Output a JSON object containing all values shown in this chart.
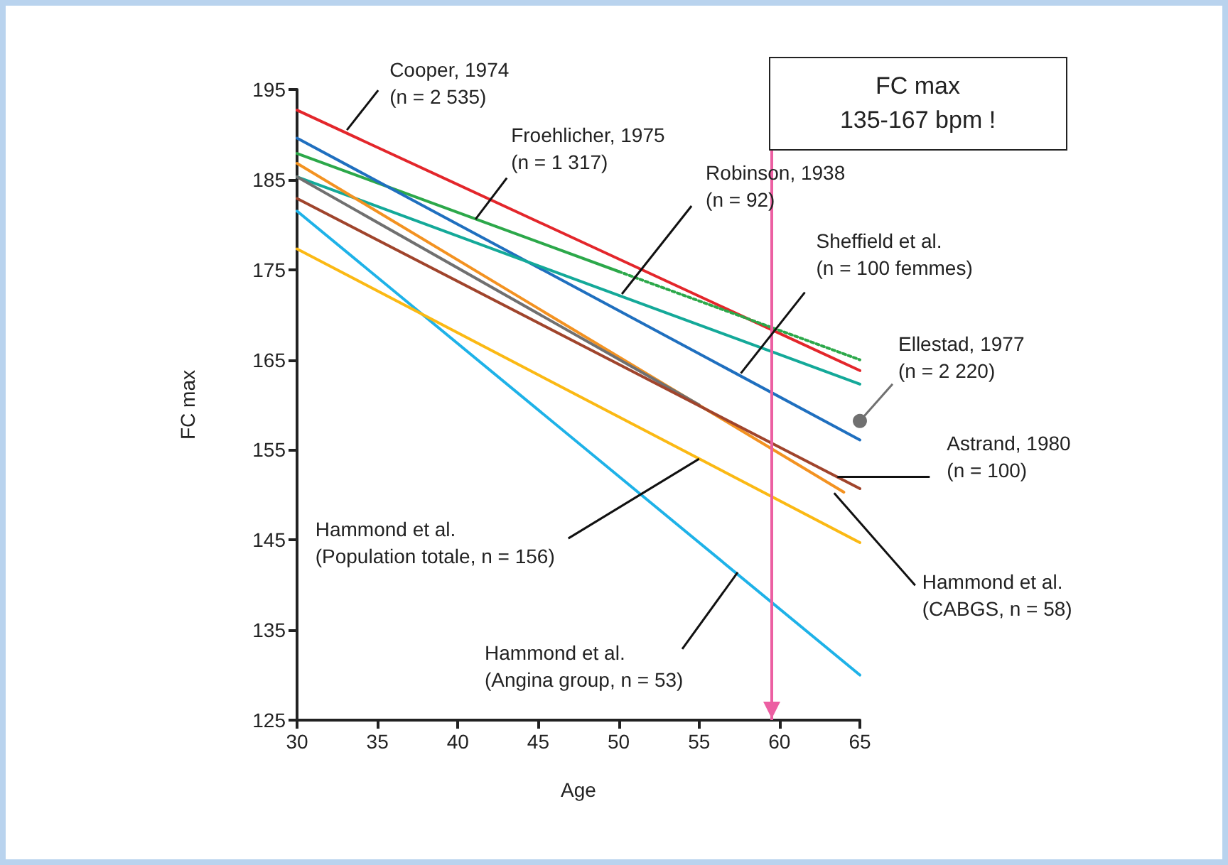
{
  "chart_data": {
    "type": "line",
    "xlabel": "Age",
    "ylabel": "FC max",
    "xlim": [
      30,
      65
    ],
    "xticks": [
      30,
      35,
      40,
      45,
      50,
      55,
      60,
      65
    ],
    "ylim": [
      125,
      195
    ],
    "yticks": [
      125,
      135,
      145,
      155,
      165,
      175,
      185,
      195
    ],
    "grid": false,
    "marker": "none",
    "series": [
      {
        "color": "#e3262b",
        "x": [
          30,
          65
        ],
        "values": [
          192.7,
          163.8
        ]
      },
      {
        "color": "#2ca84a",
        "x": [
          30,
          50
        ],
        "values": [
          187.9,
          174.8
        ]
      },
      {
        "color": "#2ca84a",
        "x": [
          50,
          65
        ],
        "values": [
          174.8,
          165
        ],
        "line_style": "dotted"
      },
      {
        "color": "#1f6fbf",
        "x": [
          30,
          65
        ],
        "values": [
          189.6,
          156.1
        ]
      },
      {
        "color": "#14a999",
        "x": [
          30,
          65
        ],
        "values": [
          185.3,
          162.3
        ]
      },
      {
        "color": "#f39221",
        "x": [
          30,
          64
        ],
        "values": [
          186.8,
          150.3
        ]
      },
      {
        "color": "#707070",
        "x": [
          30,
          55
        ],
        "values": [
          185.3,
          160
        ]
      },
      {
        "color": "#a0442c",
        "x": [
          30,
          65
        ],
        "values": [
          182.9,
          150.7
        ]
      },
      {
        "color": "#1eb2e8",
        "x": [
          30,
          65
        ],
        "values": [
          181.5,
          130
        ]
      },
      {
        "color": "#fbb914",
        "x": [
          30,
          65
        ],
        "values": [
          177.3,
          144.7
        ]
      }
    ],
    "ref_lines": [
      {
        "axis": "x",
        "value": 59.5,
        "label": "FC max\n135-167 bpm !",
        "color": "#ec5fa2"
      }
    ],
    "annotations": [
      {
        "text": "Cooper, 1974\n(n = 2 535)",
        "x": 33.1,
        "y": 190.5
      },
      {
        "text": "Froehlicher, 1975\n(n = 1 317)",
        "x": 41.1,
        "y": 180.6
      },
      {
        "text": "Robinson, 1938\n(n = 92)",
        "x": 50.2,
        "y": 172.3
      },
      {
        "text": "Sheffield et al.\n(n = 100 femmes)",
        "x": 57.6,
        "y": 163.5
      },
      {
        "text": "Ellestad, 1977\n(n = 2 220)",
        "x": 65,
        "y": 158.2
      },
      {
        "text": "Astrand, 1980\n(n = 100)",
        "x": 63.6,
        "y": 152
      },
      {
        "text": "Hammond et al.\n(CABGS, n = 58)",
        "x": 63.4,
        "y": 150.2
      },
      {
        "text": "Hammond et al.\n(Population totale, n = 156)",
        "x": 55,
        "y": 154
      },
      {
        "text": "Hammond et al.\n(Angina group, n = 53)",
        "x": 57.4,
        "y": 141.4
      }
    ]
  }
}
